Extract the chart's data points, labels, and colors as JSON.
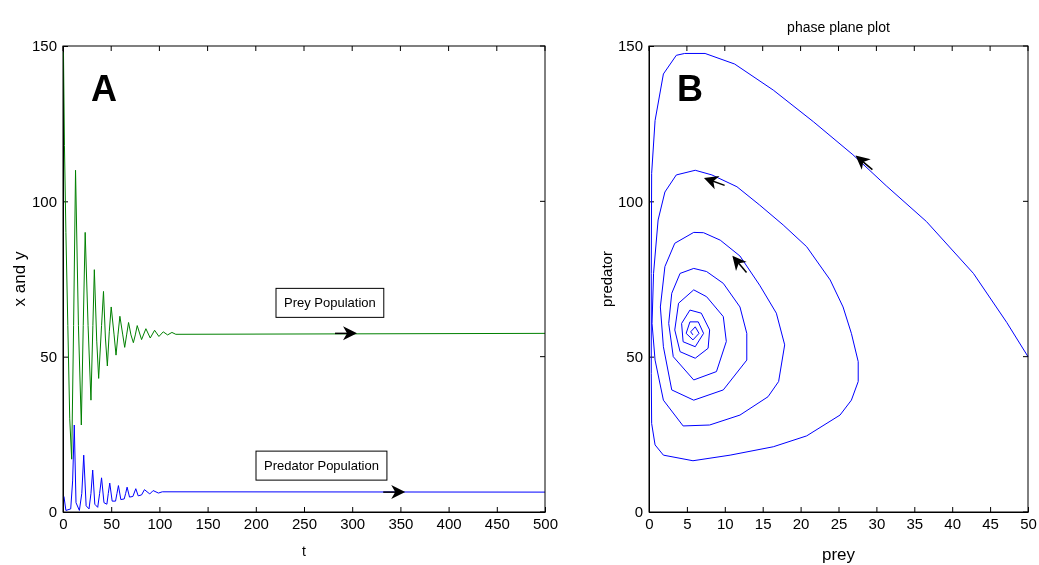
{
  "chart_data": [
    {
      "type": "line",
      "xlabel": "t",
      "ylabel": "x and y",
      "annotations": [
        "A"
      ],
      "xlim": [
        0,
        500
      ],
      "ylim": [
        0,
        150
      ],
      "xticks": [
        0,
        50,
        100,
        150,
        200,
        250,
        300,
        350,
        400,
        450,
        500
      ],
      "yticks": [
        0,
        50,
        100,
        150
      ],
      "series": [
        {
          "name": "Prey Population",
          "color": "#008000",
          "x": [
            0.5,
            1.5,
            3,
            5,
            7,
            9,
            11,
            13,
            16,
            19,
            21,
            23,
            26,
            29,
            31,
            32.5,
            35,
            37,
            40,
            42,
            44,
            46,
            48,
            50,
            53,
            55,
            57,
            59,
            62,
            64,
            66,
            68,
            70.5,
            73,
            75,
            77,
            81.5,
            86,
            90.5,
            95,
            99.5,
            104,
            108.5,
            113,
            117,
            500
          ],
          "values": [
            148,
            118,
            90,
            60,
            30,
            17,
            60,
            110,
            60,
            28,
            60,
            90,
            60,
            36,
            60,
            78,
            55,
            43,
            60,
            71,
            56,
            47,
            58,
            66,
            57,
            50.5,
            57,
            63,
            57,
            53,
            57,
            61,
            57,
            54.5,
            57,
            60,
            55.5,
            59,
            56,
            58.5,
            56.5,
            58,
            57,
            57.8,
            57.2,
            57.5
          ]
        },
        {
          "name": "Predator Population",
          "color": "#0000ff",
          "x": [
            1,
            3,
            8,
            10,
            11.7,
            13.5,
            17,
            19.5,
            21.5,
            24,
            27,
            29,
            30.8,
            33,
            36,
            38,
            40,
            42.5,
            45.5,
            47,
            48.5,
            51,
            54.5,
            56,
            57.5,
            60,
            63.5,
            65,
            66.5,
            69,
            72.5,
            75.5,
            78,
            81.5,
            84.5,
            90,
            93.5,
            99,
            103,
            500
          ],
          "values": [
            5,
            0.5,
            1,
            10,
            28,
            3,
            0.5,
            6,
            18.3,
            2,
            1,
            6,
            13.5,
            2.5,
            1.5,
            6,
            11,
            3,
            2.5,
            6,
            9.3,
            3.5,
            3.5,
            6,
            8.5,
            4,
            4.2,
            6,
            8,
            4.8,
            5,
            7.5,
            5.2,
            5.5,
            7.2,
            5.8,
            6.9,
            6.1,
            6.5,
            6.4
          ]
        }
      ]
    },
    {
      "type": "line",
      "title": "phase plane plot",
      "xlabel": "prey",
      "ylabel": "predator",
      "annotations": [
        "B"
      ],
      "xlim": [
        0,
        50
      ],
      "ylim": [
        0,
        150
      ],
      "xticks": [
        0,
        5,
        10,
        15,
        20,
        25,
        30,
        35,
        40,
        45,
        50
      ],
      "yticks": [
        0,
        50,
        100,
        150
      ],
      "series": [
        {
          "color": "#0000ff",
          "x": [
            50,
            47.2,
            42.8,
            36.6,
            31.3,
            26.9,
            21.7,
            16.4,
            11.3,
            7.4,
            4.7,
            3.6,
            1.9,
            0.8,
            0.35,
            0.3,
            0.3,
            0.35,
            0.8,
            1.9,
            5.8,
            10.7,
            16.4,
            20.8,
            25.2,
            26.7,
            27.6,
            27.6,
            26.7,
            25.6,
            23.9,
            20.8,
            17.7,
            14.6,
            11.6,
            8.3,
            6.1,
            3.6,
            2.1,
            1.2,
            0.6,
            0.4,
            0.8,
            1.9,
            4.5,
            8,
            12,
            15.7,
            17.1,
            17.9,
            16.8,
            14.6,
            12,
            9.4,
            7.2,
            5.9,
            3.4,
            2.1,
            1.5,
            1.9,
            3,
            5.9,
            9.8,
            12.9,
            12.9,
            12,
            9.8,
            7.6,
            5.9,
            4.1,
            3,
            2.6,
            3.2,
            5.9,
            8.9,
            10.2,
            9.8,
            7.6,
            5.9,
            3.9,
            3.4,
            4.1,
            6.1,
            7.8,
            8,
            6.9,
            5.4,
            4.3,
            4.5,
            6.1,
            7.2,
            6.5,
            5.4,
            4.9,
            5.8,
            6.6,
            6.1,
            5.5,
            5.8
          ],
          "values": [
            50,
            61,
            76.8,
            93.5,
            105,
            115,
            125.6,
            135.8,
            144.2,
            147.6,
            147.6,
            147,
            141,
            126,
            109,
            76.8,
            44.6,
            28.5,
            21.6,
            18.3,
            16.5,
            18.3,
            21,
            24.5,
            31.2,
            36,
            42,
            48.4,
            57.5,
            66,
            74.7,
            85.4,
            92.4,
            98.8,
            104.7,
            108.5,
            110,
            108.5,
            103,
            94,
            76.8,
            60.7,
            48.9,
            36,
            27.7,
            28,
            31.2,
            37.1,
            42,
            53.8,
            64,
            73,
            82.4,
            87.5,
            89.9,
            90,
            86.5,
            79,
            66,
            53.2,
            39.3,
            36,
            39.3,
            48.9,
            57.5,
            66,
            73.6,
            77.4,
            78.4,
            76.8,
            70.4,
            60.7,
            50,
            42.5,
            45.2,
            54.9,
            62.9,
            69.3,
            71.5,
            67.2,
            58.6,
            51.6,
            49.5,
            52.7,
            58.6,
            64,
            65,
            60.7,
            54.8,
            53.2,
            57.5,
            61.2,
            61.2,
            57.5,
            55.4,
            57.5,
            59.6,
            58,
            57
          ]
        }
      ]
    }
  ]
}
